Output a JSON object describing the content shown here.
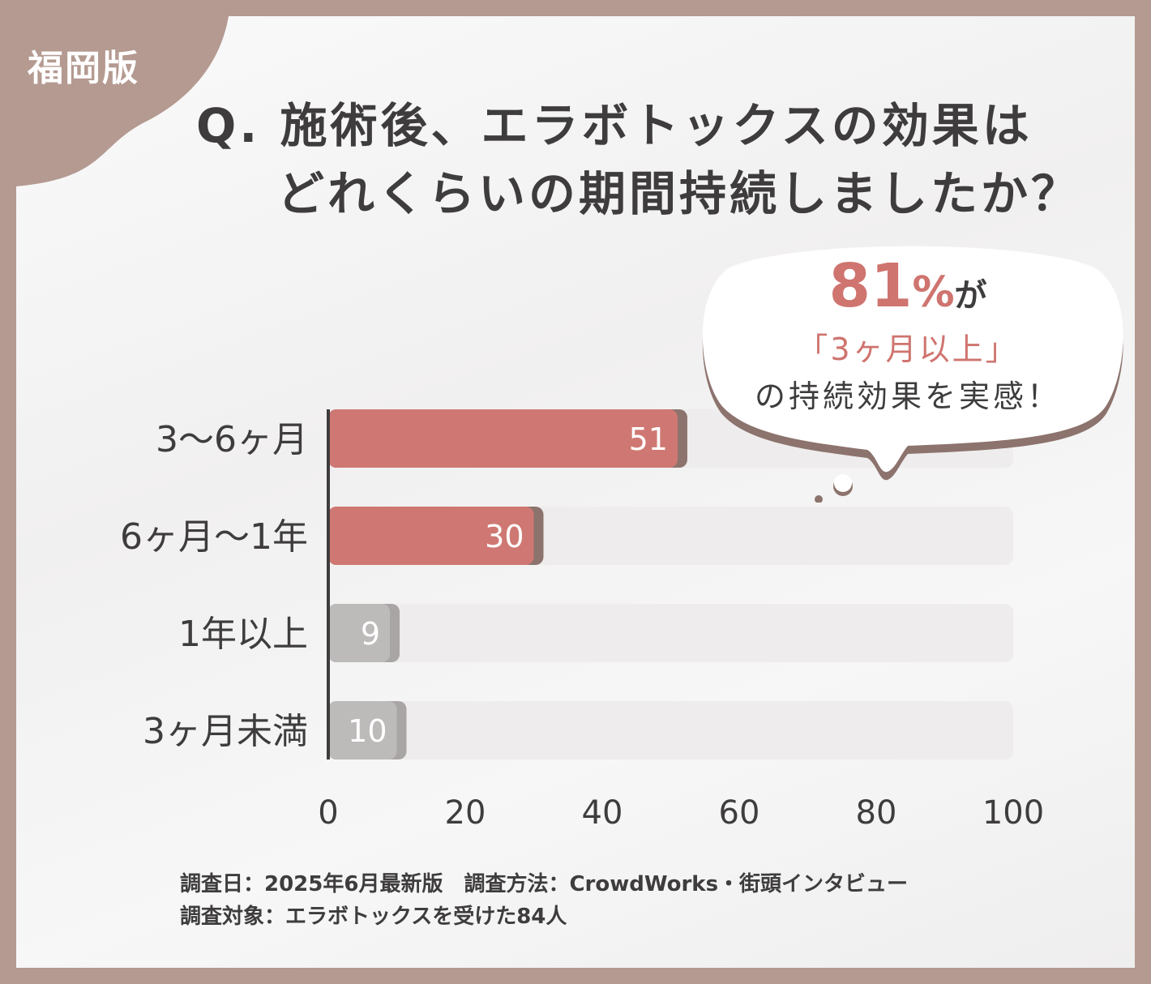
{
  "edition_tag": "福岡版",
  "title": {
    "line1": "Q. 施術後、エラボトックスの効果は",
    "line2": "どれくらいの期間持続しましたか？"
  },
  "callout": {
    "percent_number": "81",
    "percent_sign": "%",
    "particle": "が",
    "line2": "「3ヶ月以上」",
    "line3": "の持続効果を実感！"
  },
  "colors": {
    "frame": "#b49a91",
    "highlight_bar": "#cf7873",
    "muted_bar": "#bdbaba",
    "track": "#eeecec",
    "bar_shadow": "#8c736d"
  },
  "chart_data": {
    "type": "bar",
    "orientation": "horizontal",
    "categories": [
      "3〜6ヶ月",
      "6ヶ月〜1年",
      "1年以上",
      "3ヶ月未満"
    ],
    "values": [
      51,
      30,
      9,
      10
    ],
    "highlighted": [
      true,
      true,
      false,
      false
    ],
    "xlim": [
      0,
      100
    ],
    "xticks": [
      "0",
      "20",
      "40",
      "60",
      "80",
      "100"
    ],
    "grid": false,
    "legend": "none"
  },
  "footer": {
    "line1": "調査日：2025年6月最新版　調査方法：CrowdWorks・街頭インタビュー",
    "line2": "調査対象：エラボトックスを受けた84人"
  }
}
